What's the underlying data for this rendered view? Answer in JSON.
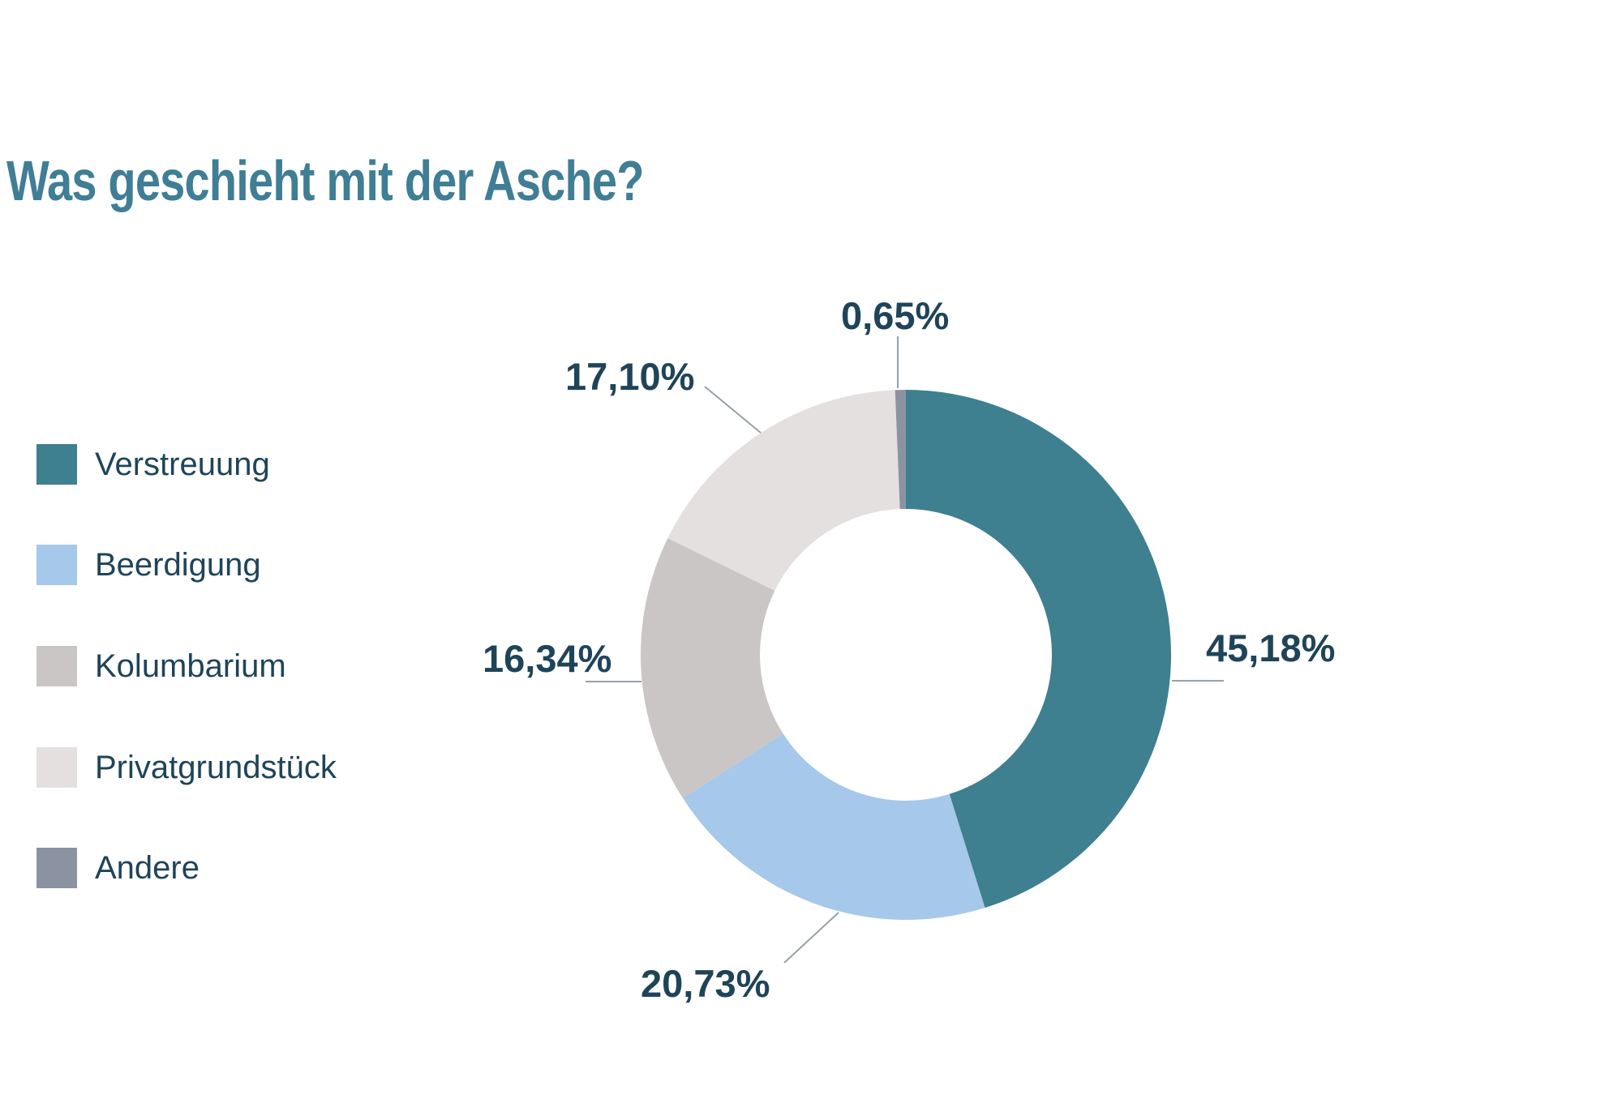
{
  "title": "Was geschieht mit der Asche?",
  "colors": {
    "background": "#FFFFFF",
    "title": "#3F7E95",
    "text": "#1F4459",
    "leader_line": "#98A0A8",
    "verstreuung": "#3E7F90",
    "beerdigung": "#A6C8EA",
    "kolumbarium": "#C9C6C5",
    "privatgrundstueck": "#E4E0E0",
    "andere": "#8B93A2"
  },
  "legend": [
    {
      "label": "Verstreuung",
      "color": "verstreuung"
    },
    {
      "label": "Beerdigung",
      "color": "beerdigung"
    },
    {
      "label": "Kolumbarium",
      "color": "kolumbarium"
    },
    {
      "label": "Privatgrundstück",
      "color": "privatgrundstueck"
    },
    {
      "label": "Andere",
      "color": "andere"
    }
  ],
  "chart_data": {
    "type": "pie",
    "subtype": "donut",
    "title": "Was geschieht mit der Asche?",
    "categories": [
      "Verstreuung",
      "Beerdigung",
      "Kolumbarium",
      "Privatgrundstück",
      "Andere"
    ],
    "values": [
      45.18,
      20.73,
      16.34,
      17.1,
      0.65
    ],
    "data_labels": [
      "45,18%",
      "20,73%",
      "16,34%",
      "17,10%",
      "0,65%"
    ],
    "colors": [
      "#3E7F90",
      "#A6C8EA",
      "#C9C6C5",
      "#E4E0E0",
      "#8B93A2"
    ],
    "start_angle_deg": 0,
    "direction": "clockwise",
    "inner_radius_ratio": 0.55,
    "legend_position": "left",
    "grid": false
  }
}
